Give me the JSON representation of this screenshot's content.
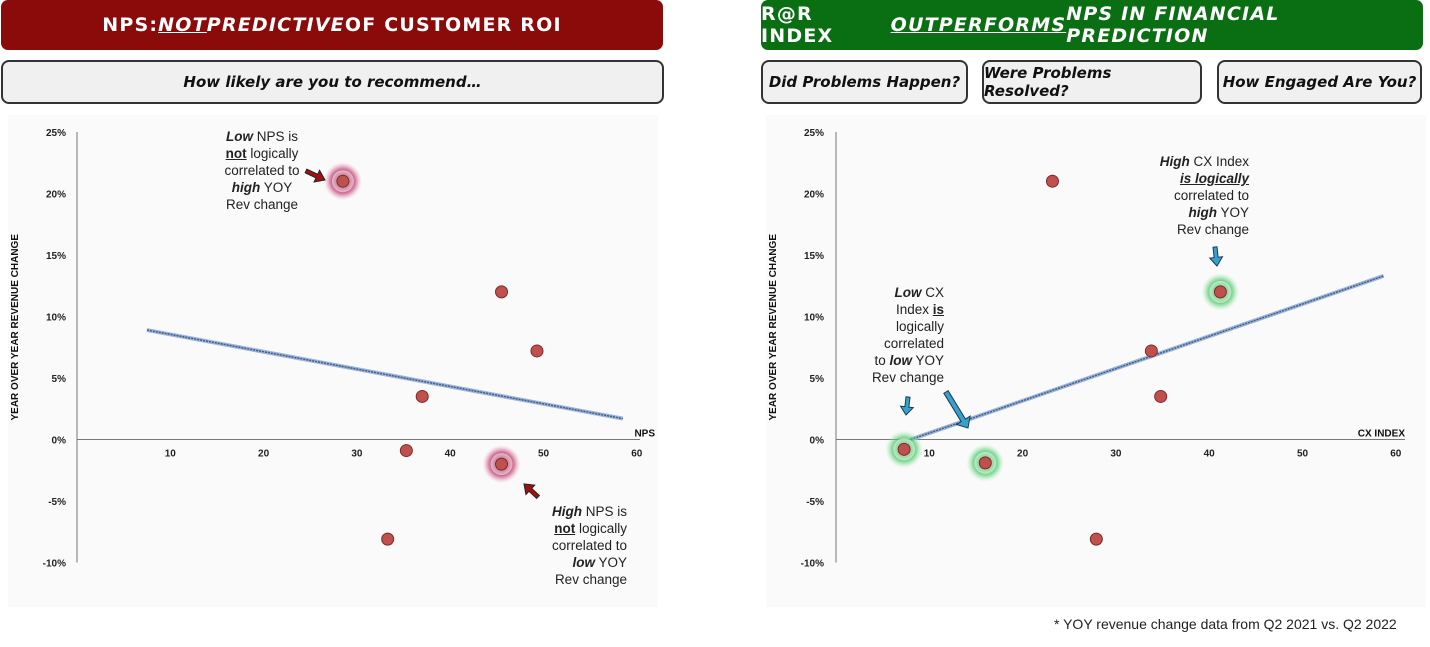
{
  "left_panel": {
    "banner": {
      "part1": "NPS: ",
      "part2": "NOT",
      "part3": " PREDICTIVE",
      "part4": " OF CUSTOMER ROI"
    },
    "question": "How likely are you to recommend…",
    "annotation_top": {
      "w1": "Low",
      "w2": " NPS is",
      "w3": "not",
      "w4": " logically",
      "w5": "correlated to",
      "w6": "high",
      "w7": " YOY",
      "w8": "Rev change"
    },
    "annotation_bottom": {
      "w1": "High",
      "w2": " NPS is",
      "w3": "not",
      "w4": " logically",
      "w5": "correlated to",
      "w6": "low",
      "w7": " YOY",
      "w8": "Rev change"
    }
  },
  "right_panel": {
    "banner": {
      "part1": "R@R INDEX ",
      "part2": "OUTPERFORMS",
      "part3": " NPS IN FINANCIAL PREDICTION"
    },
    "questions": [
      "Did Problems Happen?",
      "Were Problems Resolved?",
      "How Engaged Are You?"
    ],
    "annotation_top": {
      "w1": "High",
      "w2": " CX Index",
      "w3": "is logically",
      "w4": "correlated to",
      "w5": "high",
      "w6": " YOY",
      "w7": "Rev change"
    },
    "annotation_left": {
      "w1": "Low",
      "w2": " CX",
      "w3": "Index ",
      "w4": "is",
      "w5": "logically",
      "w6": "correlated",
      "w7": "to ",
      "w8": "low",
      "w9": " YOY",
      "w10": "Rev change"
    }
  },
  "footnote": "* YOY revenue change data from Q2 2021 vs. Q2 2022",
  "colors": {
    "left_banner": "#8b0a0a",
    "right_banner": "#0a6e12",
    "point": "#c0504d",
    "trend": "#4a6fa5",
    "highlight_red": "#a0104a",
    "highlight_green": "#2fbf4f"
  },
  "chart_data": [
    {
      "type": "scatter",
      "xlabel": "NPS",
      "ylabel": "YEAR OVER YEAR REVENUE CHANGE",
      "xlim": [
        0,
        60
      ],
      "ylim": [
        -10,
        25
      ],
      "xticks": [
        "10",
        "20",
        "30",
        "40",
        "50",
        "60"
      ],
      "yticks": [
        "25%",
        "20%",
        "15%",
        "10%",
        "5%",
        "0%",
        "-5%",
        "-10%"
      ],
      "points": [
        {
          "x": 28.5,
          "y": 21,
          "highlight": true
        },
        {
          "x": 45.5,
          "y": 12,
          "highlight": false
        },
        {
          "x": 49.3,
          "y": 7.2,
          "highlight": false
        },
        {
          "x": 37,
          "y": 3.5,
          "highlight": false
        },
        {
          "x": 35.3,
          "y": -0.9,
          "highlight": false
        },
        {
          "x": 45.5,
          "y": -2,
          "highlight": true
        },
        {
          "x": 33.3,
          "y": -8.1,
          "highlight": false
        }
      ],
      "trendline": {
        "x": [
          7.5,
          58.5
        ],
        "y": [
          8.9,
          1.7
        ]
      },
      "grid": false
    },
    {
      "type": "scatter",
      "xlabel": "CX INDEX",
      "ylabel": "YEAR OVER YEAR REVENUE CHANGE",
      "xlim": [
        0,
        60
      ],
      "ylim": [
        -10,
        25
      ],
      "xticks": [
        "10",
        "20",
        "30",
        "40",
        "50",
        "60"
      ],
      "yticks": [
        "25%",
        "20%",
        "15%",
        "10%",
        "5%",
        "0%",
        "-5%",
        "-10%"
      ],
      "points": [
        {
          "x": 23.2,
          "y": 21,
          "highlight": false
        },
        {
          "x": 41.2,
          "y": 12,
          "highlight": true
        },
        {
          "x": 33.8,
          "y": 7.2,
          "highlight": false
        },
        {
          "x": 34.8,
          "y": 3.5,
          "highlight": false
        },
        {
          "x": 7.3,
          "y": -0.8,
          "highlight": true
        },
        {
          "x": 16,
          "y": -1.9,
          "highlight": true
        },
        {
          "x": 27.9,
          "y": -8.1,
          "highlight": false
        }
      ],
      "trendline": {
        "x": [
          8,
          58.7
        ],
        "y": [
          0,
          13.3
        ]
      },
      "grid": false
    }
  ]
}
